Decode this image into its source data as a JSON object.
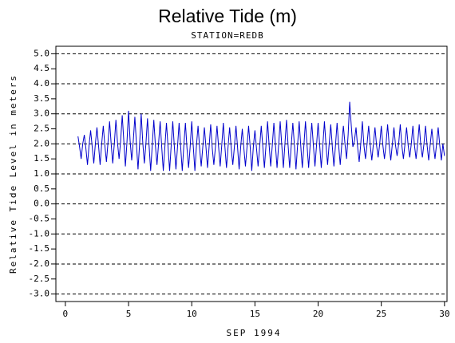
{
  "chart_data": {
    "type": "line",
    "title": "Relative Tide (m)",
    "subtitle": "STATION=REDB",
    "x_label": "SEP 1994",
    "y_label": "Relative Tide Level in meters",
    "xlim": [
      -0.75,
      30.2
    ],
    "ylim": [
      -3.25,
      5.25
    ],
    "xticks": [
      0,
      5,
      10,
      15,
      20,
      25,
      30
    ],
    "yticks": [
      {
        "value": 5,
        "label": "5.0"
      },
      {
        "value": 4.5,
        "label": "4.5"
      },
      {
        "value": 4,
        "label": "4.0"
      },
      {
        "value": 3.5,
        "label": "3.5"
      },
      {
        "value": 3,
        "label": "3.0"
      },
      {
        "value": 2.5,
        "label": "2.5"
      },
      {
        "value": 2,
        "label": "2.0"
      },
      {
        "value": 1.5,
        "label": "1.5"
      },
      {
        "value": 1,
        "label": "1.0"
      },
      {
        "value": 0.5,
        "label": "0.5"
      },
      {
        "value": 0,
        "label": "0.0"
      },
      {
        "value": -0.5,
        "label": "-0.5"
      },
      {
        "value": -1,
        "label": "-1.0"
      },
      {
        "value": -1.5,
        "label": "-1.5"
      },
      {
        "value": -2,
        "label": "-2.0"
      },
      {
        "value": -2.5,
        "label": "-2.5"
      },
      {
        "value": -3,
        "label": "-3.0"
      }
    ],
    "grid": true,
    "x": [
      1,
      1.125,
      1.25,
      1.375,
      1.5,
      1.625,
      1.75,
      1.875,
      2,
      2.125,
      2.25,
      2.375,
      2.5,
      2.625,
      2.75,
      2.875,
      3,
      3.125,
      3.25,
      3.375,
      3.5,
      3.625,
      3.75,
      3.875,
      4,
      4.125,
      4.25,
      4.375,
      4.5,
      4.625,
      4.75,
      4.875,
      5,
      5.125,
      5.25,
      5.375,
      5.5,
      5.625,
      5.75,
      5.875,
      6,
      6.125,
      6.25,
      6.375,
      6.5,
      6.625,
      6.75,
      6.875,
      7,
      7.125,
      7.25,
      7.375,
      7.5,
      7.625,
      7.75,
      7.875,
      8,
      8.125,
      8.25,
      8.375,
      8.5,
      8.625,
      8.75,
      8.875,
      9,
      9.125,
      9.25,
      9.375,
      9.5,
      9.625,
      9.75,
      9.875,
      10,
      10.125,
      10.25,
      10.375,
      10.5,
      10.625,
      10.75,
      10.875,
      11,
      11.125,
      11.25,
      11.375,
      11.5,
      11.625,
      11.75,
      11.875,
      12,
      12.125,
      12.25,
      12.375,
      12.5,
      12.625,
      12.75,
      12.875,
      13,
      13.125,
      13.25,
      13.375,
      13.5,
      13.625,
      13.75,
      13.875,
      14,
      14.125,
      14.25,
      14.375,
      14.5,
      14.625,
      14.75,
      14.875,
      15,
      15.125,
      15.25,
      15.375,
      15.5,
      15.625,
      15.75,
      15.875,
      16,
      16.125,
      16.25,
      16.375,
      16.5,
      16.625,
      16.75,
      16.875,
      17,
      17.125,
      17.25,
      17.375,
      17.5,
      17.625,
      17.75,
      17.875,
      18,
      18.125,
      18.25,
      18.375,
      18.5,
      18.625,
      18.75,
      18.875,
      19,
      19.125,
      19.25,
      19.375,
      19.5,
      19.625,
      19.75,
      19.875,
      20,
      20.125,
      20.25,
      20.375,
      20.5,
      20.625,
      20.75,
      20.875,
      21,
      21.125,
      21.25,
      21.375,
      21.5,
      21.625,
      21.75,
      21.875,
      22,
      22.125,
      22.25,
      22.375,
      22.5,
      22.625,
      22.75,
      22.875,
      23,
      23.125,
      23.25,
      23.375,
      23.5,
      23.625,
      23.75,
      23.875,
      24,
      24.125,
      24.25,
      24.375,
      24.5,
      24.625,
      24.75,
      24.875,
      25,
      25.125,
      25.25,
      25.375,
      25.5,
      25.625,
      25.75,
      25.875,
      26,
      26.125,
      26.25,
      26.375,
      26.5,
      26.625,
      26.75,
      26.875,
      27,
      27.125,
      27.25,
      27.375,
      27.5,
      27.625,
      27.75,
      27.875,
      28,
      28.125,
      28.25,
      28.375,
      28.5,
      28.625,
      28.75,
      28.875,
      29,
      29.125,
      29.25,
      29.375,
      29.5,
      29.625,
      29.75,
      29.875,
      30
    ],
    "series": [
      {
        "name": "Relative Tide",
        "color": "#0000cc",
        "values": [
          2.25,
          1.9,
          1.5,
          2.0,
          2.3,
          1.85,
          1.3,
          1.95,
          2.45,
          1.9,
          1.35,
          2.0,
          2.55,
          1.95,
          1.3,
          2.0,
          2.6,
          1.95,
          1.4,
          2.05,
          2.75,
          2.0,
          1.35,
          2.0,
          2.8,
          2.05,
          1.5,
          2.1,
          2.95,
          2.1,
          1.25,
          2.05,
          3.1,
          2.1,
          1.45,
          2.1,
          2.9,
          2.0,
          1.15,
          2.0,
          3.0,
          2.05,
          1.35,
          2.0,
          2.85,
          1.95,
          1.1,
          1.95,
          2.8,
          1.95,
          1.3,
          2.0,
          2.75,
          1.9,
          1.1,
          1.9,
          2.7,
          1.9,
          1.1,
          1.95,
          2.75,
          1.9,
          1.15,
          1.9,
          2.7,
          1.9,
          1.1,
          1.95,
          2.7,
          1.85,
          1.2,
          1.9,
          2.75,
          1.9,
          1.1,
          1.95,
          2.6,
          1.85,
          1.25,
          1.9,
          2.55,
          1.9,
          1.2,
          1.9,
          2.65,
          1.85,
          1.3,
          1.9,
          2.6,
          1.9,
          1.25,
          1.95,
          2.7,
          1.9,
          1.2,
          1.9,
          2.55,
          1.85,
          1.3,
          1.9,
          2.6,
          1.9,
          1.15,
          1.9,
          2.5,
          1.85,
          1.25,
          1.9,
          2.6,
          1.9,
          1.1,
          1.9,
          2.45,
          1.85,
          1.25,
          1.9,
          2.6,
          1.9,
          1.2,
          1.95,
          2.75,
          1.95,
          1.25,
          1.95,
          2.7,
          1.95,
          1.2,
          1.95,
          2.75,
          1.95,
          1.2,
          2.0,
          2.8,
          1.95,
          1.2,
          1.95,
          2.7,
          1.95,
          1.15,
          1.95,
          2.75,
          1.95,
          1.2,
          1.95,
          2.75,
          1.95,
          1.2,
          2.0,
          2.7,
          1.95,
          1.25,
          1.95,
          2.7,
          1.95,
          1.2,
          1.95,
          2.75,
          1.95,
          1.3,
          2.0,
          2.65,
          1.9,
          1.25,
          1.95,
          2.7,
          1.95,
          1.3,
          2.0,
          2.6,
          2.0,
          1.5,
          2.3,
          3.4,
          2.6,
          1.9,
          2.1,
          2.55,
          1.9,
          1.4,
          2.0,
          2.75,
          1.95,
          1.5,
          2.0,
          2.6,
          1.95,
          1.45,
          2.0,
          2.55,
          1.95,
          1.55,
          2.0,
          2.6,
          1.95,
          1.5,
          2.0,
          2.65,
          1.95,
          1.45,
          2.0,
          2.55,
          1.95,
          1.6,
          2.0,
          2.65,
          1.95,
          1.5,
          2.0,
          2.55,
          1.95,
          1.55,
          2.0,
          2.6,
          1.95,
          1.5,
          2.0,
          2.65,
          1.95,
          1.55,
          2.0,
          2.6,
          1.95,
          1.45,
          2.0,
          2.5,
          1.95,
          1.5,
          2.0,
          2.55,
          1.95,
          1.45,
          2.0,
          1.6
        ]
      }
    ]
  }
}
